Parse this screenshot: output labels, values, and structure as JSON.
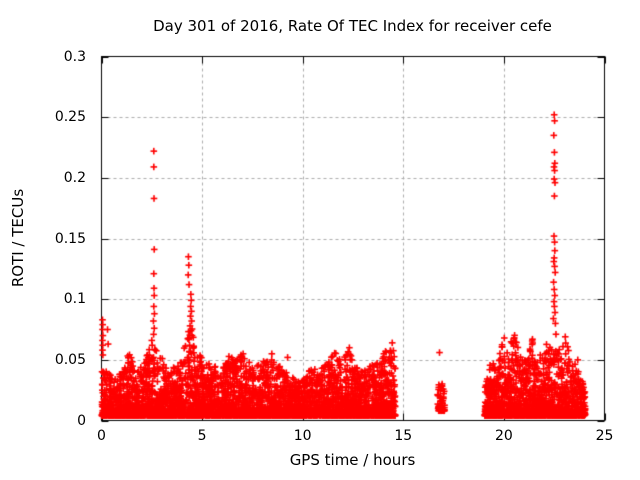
{
  "window": {
    "background": "#ffffff"
  },
  "chart_data": {
    "type": "scatter",
    "title": "Day 301 of 2016, Rate Of TEC Index for receiver cefe",
    "xlabel": "GPS time / hours",
    "ylabel": "ROTI / TECUs",
    "xlim": [
      0,
      25
    ],
    "ylim": [
      0,
      0.3
    ],
    "xticks": [
      0,
      5,
      10,
      15,
      20,
      25
    ],
    "xtick_labels": [
      "0",
      "5",
      "10",
      "15",
      "20",
      "25"
    ],
    "yticks": [
      0,
      0.05,
      0.1,
      0.15,
      0.2,
      0.25,
      0.3
    ],
    "ytick_labels": [
      "0",
      "0.05",
      "0.1",
      "0.15",
      "0.2",
      "0.25",
      "0.3"
    ],
    "grid": true,
    "legend": "none",
    "marker": {
      "shape": "plus",
      "color": "#ff0000",
      "size": 7
    },
    "style": {
      "grid_color": "#ababab",
      "frame_color": "#000000",
      "text_color": "#000000"
    },
    "seed": 301,
    "density_segments": [
      {
        "t0": 0.0,
        "t1": 14.6,
        "rate": 300,
        "power": 3,
        "y_min": 0.004,
        "envelope": [
          [
            0,
            0.05
          ],
          [
            0.3,
            0.04
          ],
          [
            0.7,
            0.034
          ],
          [
            1.1,
            0.042
          ],
          [
            1.4,
            0.06
          ],
          [
            1.7,
            0.04
          ],
          [
            2.0,
            0.046
          ],
          [
            2.3,
            0.055
          ],
          [
            2.55,
            0.068
          ],
          [
            2.75,
            0.058
          ],
          [
            3.0,
            0.05
          ],
          [
            3.3,
            0.04
          ],
          [
            3.7,
            0.046
          ],
          [
            4.0,
            0.052
          ],
          [
            4.25,
            0.07
          ],
          [
            4.45,
            0.088
          ],
          [
            4.65,
            0.06
          ],
          [
            4.9,
            0.055
          ],
          [
            5.15,
            0.045
          ],
          [
            5.4,
            0.05
          ],
          [
            5.7,
            0.044
          ],
          [
            6.0,
            0.04
          ],
          [
            6.3,
            0.056
          ],
          [
            6.6,
            0.05
          ],
          [
            7.0,
            0.056
          ],
          [
            7.35,
            0.05
          ],
          [
            7.7,
            0.045
          ],
          [
            8.1,
            0.05
          ],
          [
            8.45,
            0.056
          ],
          [
            8.8,
            0.046
          ],
          [
            9.2,
            0.04
          ],
          [
            9.6,
            0.034
          ],
          [
            10.0,
            0.034
          ],
          [
            10.4,
            0.046
          ],
          [
            10.8,
            0.04
          ],
          [
            11.2,
            0.05
          ],
          [
            11.6,
            0.056
          ],
          [
            12.0,
            0.05
          ],
          [
            12.3,
            0.06
          ],
          [
            12.6,
            0.046
          ],
          [
            13.0,
            0.04
          ],
          [
            13.4,
            0.046
          ],
          [
            13.8,
            0.05
          ],
          [
            14.2,
            0.06
          ],
          [
            14.5,
            0.066
          ],
          [
            14.6,
            0.058
          ]
        ]
      },
      {
        "t0": 16.7,
        "t1": 17.05,
        "rate": 180,
        "power": 1.6,
        "y_min": 0.008,
        "envelope": [
          [
            16.7,
            0.027
          ],
          [
            16.85,
            0.033
          ],
          [
            17.05,
            0.026
          ]
        ]
      },
      {
        "t0": 19.05,
        "t1": 24.05,
        "rate": 300,
        "power": 3,
        "y_min": 0.004,
        "envelope": [
          [
            19.05,
            0.03
          ],
          [
            19.35,
            0.05
          ],
          [
            19.65,
            0.044
          ],
          [
            19.95,
            0.068
          ],
          [
            20.2,
            0.058
          ],
          [
            20.5,
            0.074
          ],
          [
            20.8,
            0.054
          ],
          [
            21.1,
            0.05
          ],
          [
            21.4,
            0.066
          ],
          [
            21.7,
            0.054
          ],
          [
            22.0,
            0.07
          ],
          [
            22.25,
            0.06
          ],
          [
            22.5,
            0.078
          ],
          [
            22.8,
            0.056
          ],
          [
            23.05,
            0.068
          ],
          [
            23.35,
            0.05
          ],
          [
            23.6,
            0.056
          ],
          [
            23.85,
            0.04
          ],
          [
            24.05,
            0.022
          ]
        ]
      }
    ],
    "notable_points": [
      [
        0.05,
        0.083
      ],
      [
        0.06,
        0.079
      ],
      [
        0.05,
        0.075
      ],
      [
        0.07,
        0.07
      ],
      [
        0.05,
        0.066
      ],
      [
        0.06,
        0.062
      ],
      [
        0.05,
        0.058
      ],
      [
        0.07,
        0.054
      ],
      [
        0.3,
        0.075
      ],
      [
        0.33,
        0.063
      ],
      [
        2.5,
        0.066
      ],
      [
        2.52,
        0.062
      ],
      [
        2.6,
        0.222
      ],
      [
        2.6,
        0.209
      ],
      [
        2.61,
        0.183
      ],
      [
        2.62,
        0.141
      ],
      [
        2.6,
        0.121
      ],
      [
        2.61,
        0.109
      ],
      [
        2.62,
        0.103
      ],
      [
        2.6,
        0.094
      ],
      [
        2.63,
        0.088
      ],
      [
        2.58,
        0.082
      ],
      [
        2.62,
        0.076
      ],
      [
        2.59,
        0.071
      ],
      [
        3.02,
        0.051
      ],
      [
        4.32,
        0.135
      ],
      [
        4.34,
        0.128
      ],
      [
        4.31,
        0.12
      ],
      [
        4.35,
        0.112
      ],
      [
        4.44,
        0.104
      ],
      [
        4.46,
        0.099
      ],
      [
        4.43,
        0.094
      ],
      [
        4.47,
        0.09
      ],
      [
        4.42,
        0.086
      ],
      [
        4.48,
        0.082
      ],
      [
        4.4,
        0.078
      ],
      [
        4.45,
        0.074
      ],
      [
        4.5,
        0.07
      ],
      [
        9.25,
        0.052
      ],
      [
        12.32,
        0.06
      ],
      [
        14.45,
        0.064
      ],
      [
        16.8,
        0.056
      ],
      [
        22.5,
        0.252
      ],
      [
        22.52,
        0.247
      ],
      [
        22.48,
        0.235
      ],
      [
        22.51,
        0.221
      ],
      [
        22.53,
        0.212
      ],
      [
        22.49,
        0.209
      ],
      [
        22.52,
        0.206
      ],
      [
        22.5,
        0.199
      ],
      [
        22.54,
        0.196
      ],
      [
        22.51,
        0.185
      ],
      [
        22.49,
        0.152
      ],
      [
        22.52,
        0.147
      ],
      [
        22.53,
        0.14
      ],
      [
        22.5,
        0.134
      ],
      [
        22.48,
        0.131
      ],
      [
        22.52,
        0.127
      ],
      [
        22.55,
        0.122
      ],
      [
        22.47,
        0.114
      ],
      [
        22.5,
        0.108
      ],
      [
        22.53,
        0.103
      ],
      [
        22.49,
        0.098
      ],
      [
        22.51,
        0.094
      ],
      [
        22.54,
        0.089
      ],
      [
        22.46,
        0.084
      ],
      [
        22.56,
        0.08
      ],
      [
        20.02,
        0.068
      ],
      [
        21.42,
        0.067
      ],
      [
        23.05,
        0.069
      ]
    ]
  }
}
